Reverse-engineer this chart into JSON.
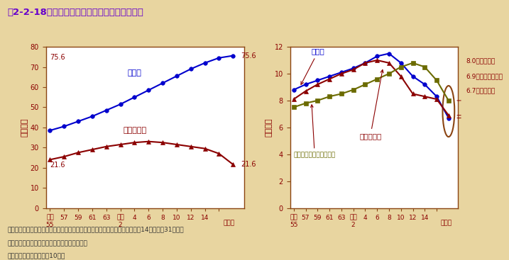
{
  "title": "第2-2-18図　我が国の研究関係従事者数の推移",
  "title_color": "#6600cc",
  "title_line_color": "#8B4513",
  "background_color": "#E8D5A0",
  "plot_bg_color": "#FFFFFF",
  "label_color": "#8B0000",
  "left_chart": {
    "ylabel": "（万人）",
    "ylim": [
      0,
      80
    ],
    "yticks": [
      0,
      10,
      20,
      30,
      40,
      50,
      60,
      70,
      80
    ],
    "xtick_positions": [
      0,
      1,
      2,
      3,
      4,
      5,
      6,
      7,
      8,
      9,
      10,
      11,
      12
    ],
    "xtick_labels": [
      "昭和\n55",
      "57",
      "59",
      "61",
      "63",
      "平成\n2",
      "4",
      "6",
      "8",
      "10",
      "12",
      "14",
      "（年）"
    ],
    "series": {
      "researcher": {
        "label": "研究者",
        "color": "#0000CD",
        "marker": "o",
        "markersize": 4,
        "values": [
          38.5,
          40.5,
          43.0,
          45.5,
          48.5,
          51.5,
          55.0,
          58.5,
          62.0,
          65.5,
          69.0,
          72.0,
          74.5,
          75.6
        ]
      },
      "supporter": {
        "label": "研究支援者",
        "color": "#8B0000",
        "marker": "^",
        "markersize": 4,
        "values": [
          24.0,
          25.5,
          27.5,
          29.0,
          30.5,
          31.5,
          32.5,
          33.0,
          32.5,
          31.5,
          30.5,
          29.5,
          27.0,
          21.6
        ]
      }
    }
  },
  "right_chart": {
    "ylabel": "（万人）",
    "ylim": [
      0,
      12
    ],
    "yticks": [
      0,
      2,
      4,
      6,
      8,
      10,
      12
    ],
    "xtick_positions": [
      0,
      1,
      2,
      3,
      4,
      5,
      6,
      7,
      8,
      9,
      10,
      11,
      12
    ],
    "xtick_labels": [
      "昭和\n55",
      "57",
      "59",
      "61",
      "63",
      "平成\n2",
      "4",
      "6",
      "8",
      "10",
      "12",
      "14",
      "（年）"
    ],
    "series": {
      "ginou": {
        "label": "技能者",
        "color": "#0000CD",
        "marker": "o",
        "markersize": 4,
        "values": [
          8.8,
          9.2,
          9.5,
          9.8,
          10.1,
          10.4,
          10.8,
          11.3,
          11.5,
          10.8,
          9.8,
          9.2,
          8.3,
          6.7
        ]
      },
      "hojo": {
        "label": "研究補助者",
        "color": "#8B0000",
        "marker": "^",
        "markersize": 4,
        "values": [
          8.1,
          8.7,
          9.2,
          9.6,
          10.0,
          10.3,
          10.8,
          11.0,
          10.8,
          9.8,
          8.5,
          8.3,
          8.1,
          6.9
        ]
      },
      "jimu": {
        "label": "研究事務その他の関係者",
        "color": "#6B6B00",
        "marker": "s",
        "markersize": 4,
        "values": [
          7.5,
          7.8,
          8.0,
          8.3,
          8.5,
          8.8,
          9.2,
          9.6,
          10.0,
          10.5,
          10.8,
          10.5,
          9.5,
          8.0
        ]
      }
    }
  },
  "footnotes": [
    "注）各年次とも人文・社会科学等を含む４月１日現在の他である（ただし平成14年は３月31日）。",
    "資料：総務省統計局「科学技術研究調査報告」",
    "（参照：付属資料３．（10））"
  ]
}
